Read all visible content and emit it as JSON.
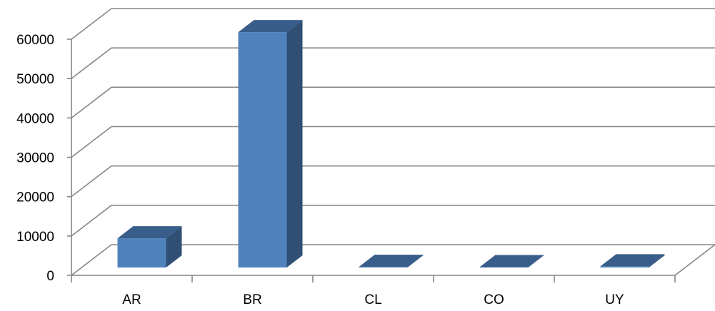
{
  "chart_data": {
    "type": "bar",
    "style": "3d-column",
    "categories": [
      "AR",
      "BR",
      "CL",
      "CO",
      "UY"
    ],
    "series": [
      {
        "values": [
          7400,
          59800,
          150,
          80,
          300
        ]
      }
    ],
    "ylim": [
      0,
      60000
    ],
    "yticks": [
      0,
      10000,
      20000,
      30000,
      40000,
      50000,
      60000
    ],
    "grid": true,
    "legend": "none",
    "colors": {
      "bar_front": "#4f81bd",
      "bar_side": "#2f4f74",
      "bar_top": "#385d8a",
      "grid": "#868686",
      "text": "#000000"
    }
  }
}
